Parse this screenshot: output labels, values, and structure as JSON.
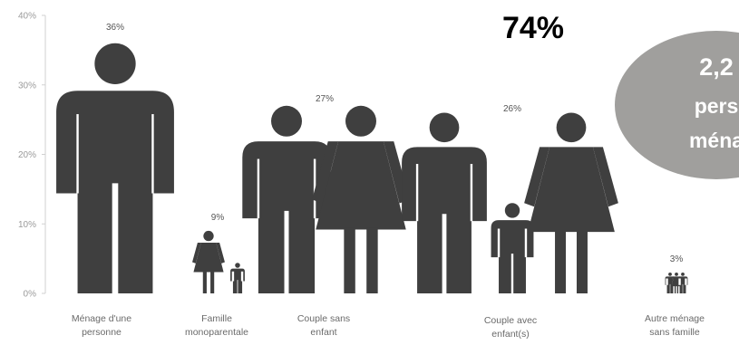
{
  "headline": "74%",
  "callout": {
    "line1": "2,2",
    "line2": "pers",
    "line3": "ména"
  },
  "colors": {
    "figure": "#3f3f3f",
    "axis": "#d0d0d0",
    "callout": "#a09f9d"
  },
  "chart_data": {
    "type": "bar",
    "ylim": [
      0,
      40
    ],
    "yticks": [
      "0%",
      "10%",
      "20%",
      "30%",
      "40%"
    ],
    "categories": [
      [
        "Ménage d'une",
        "personne"
      ],
      [
        "Famille",
        "monoparentale"
      ],
      [
        "Couple sans",
        "enfant"
      ],
      [
        "Couple avec",
        "enfant(s)"
      ],
      [
        "Autre ménage",
        "sans famille"
      ]
    ],
    "values": [
      36,
      9,
      27,
      26,
      3
    ],
    "value_labels": [
      "36%",
      "9%",
      "27%",
      "26%",
      "3%"
    ]
  }
}
